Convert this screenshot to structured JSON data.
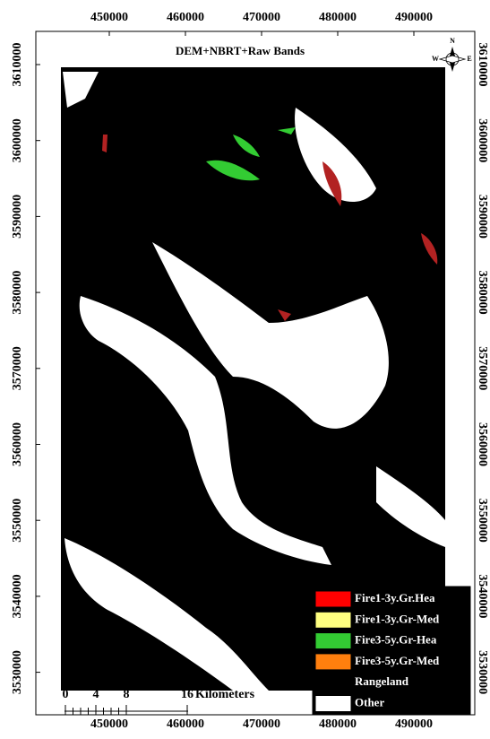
{
  "title": "DEM+NBRT+Raw Bands",
  "x_ticks": [
    450000,
    460000,
    470000,
    480000,
    490000
  ],
  "y_ticks": [
    3610000,
    3600000,
    3590000,
    3580000,
    3570000,
    3560000,
    3550000,
    3540000,
    3530000
  ],
  "legend": [
    {
      "label": "Fire1-3y.Gr.Hea",
      "color": "#ff0000"
    },
    {
      "label": "Fire1-3y.Gr-Med",
      "color": "#ffff80"
    },
    {
      "label": "Fire3-5y.Gr-Hea",
      "color": "#33cc33"
    },
    {
      "label": "Fire3-5y.Gr-Med",
      "color": "#ff7f0e"
    },
    {
      "label": "Rangeland",
      "color": "#000000"
    },
    {
      "label": "Other",
      "color": "#ffffff"
    }
  ],
  "scale_bar": {
    "ticks": [
      "0",
      "4",
      "8",
      "16"
    ],
    "unit": "Kilometers"
  },
  "north_arrow": {
    "n": "N",
    "e": "E",
    "w": "W"
  }
}
